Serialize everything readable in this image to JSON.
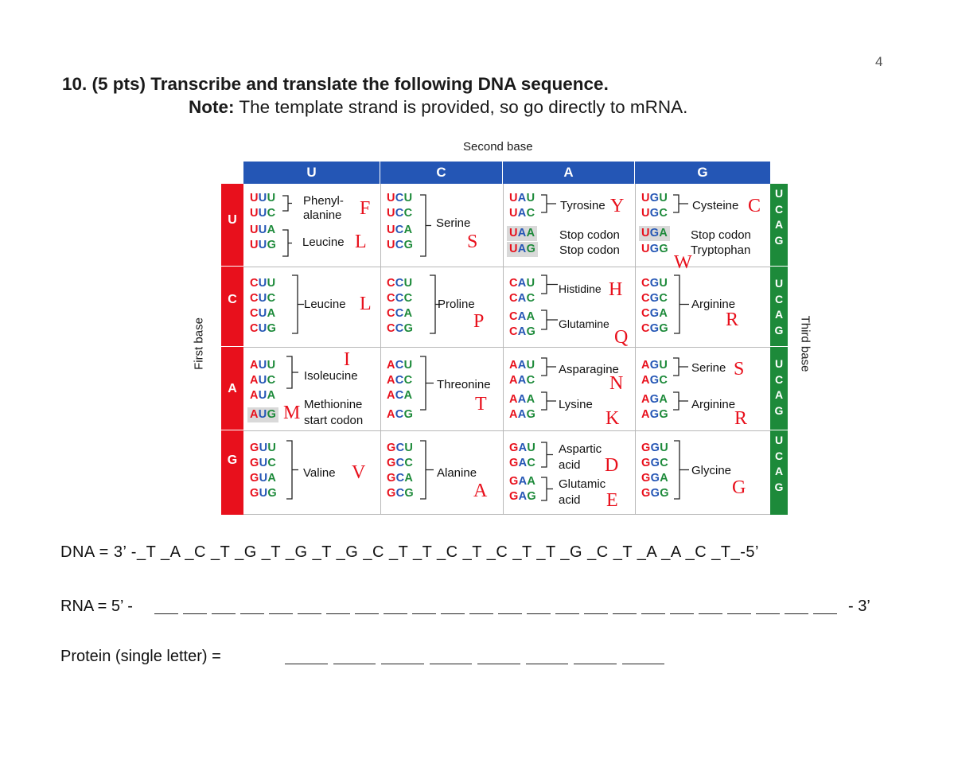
{
  "page_number": "4",
  "question": {
    "title": "10. (5 pts) Transcribe and translate the following DNA sequence.",
    "note_bold": "Note:",
    "note_text": " The template strand is provided, so go directly to mRNA."
  },
  "codon_table": {
    "second_base_label": "Second base",
    "first_base_label": "First base",
    "third_base_label": "Third base",
    "columns": [
      "U",
      "C",
      "A",
      "G"
    ],
    "rows": [
      "U",
      "C",
      "A",
      "G"
    ],
    "third_base_letters": [
      "U",
      "C",
      "A",
      "G"
    ],
    "colors": {
      "first_base": "#e8101c",
      "second_base": "#2456b5",
      "third_base": "#1d8a3a",
      "letter_annotation": "#e8101c"
    },
    "cells": {
      "UU": {
        "codons": [
          "UUU",
          "UUC",
          "UUA",
          "UUG"
        ],
        "aa1": "Phenyl-",
        "aa1b": "alanine",
        "aa1_letter": "F",
        "aa2": "Leucine",
        "aa2_letter": "L"
      },
      "UC": {
        "codons": [
          "UCU",
          "UCC",
          "UCA",
          "UCG"
        ],
        "aa": "Serine",
        "letter": "S"
      },
      "UA": {
        "codons": [
          "UAU",
          "UAC",
          "UAA",
          "UAG"
        ],
        "aa1": "Tyrosine",
        "aa1_letter": "Y",
        "stop1": "Stop codon",
        "stop2": "Stop codon"
      },
      "UG": {
        "codons": [
          "UGU",
          "UGC",
          "UGA",
          "UGG"
        ],
        "aa1": "Cysteine",
        "aa1_letter": "C",
        "stop1": "Stop codon",
        "aa2": "Tryptophan",
        "aa2_letter": "W"
      },
      "CU": {
        "codons": [
          "CUU",
          "CUC",
          "CUA",
          "CUG"
        ],
        "aa": "Leucine",
        "letter": "L"
      },
      "CC": {
        "codons": [
          "CCU",
          "CCC",
          "CCA",
          "CCG"
        ],
        "aa": "Proline",
        "letter": "P"
      },
      "CA": {
        "codons": [
          "CAU",
          "CAC",
          "CAA",
          "CAG"
        ],
        "aa1": "Histidine",
        "aa1_letter": "H",
        "aa2": "Glutamine",
        "aa2_letter": "Q"
      },
      "CG": {
        "codons": [
          "CGU",
          "CGC",
          "CGA",
          "CGG"
        ],
        "aa": "Arginine",
        "letter": "R"
      },
      "AU": {
        "codons": [
          "AUU",
          "AUC",
          "AUA",
          "AUG"
        ],
        "aa1": "Isoleucine",
        "aa1_letter": "I",
        "aa2": "Methionine",
        "aa2b": "start codon",
        "aa2_letter": "M"
      },
      "AC": {
        "codons": [
          "ACU",
          "ACC",
          "ACA",
          "ACG"
        ],
        "aa": "Threonine",
        "letter": "T"
      },
      "AA": {
        "codons": [
          "AAU",
          "AAC",
          "AAA",
          "AAG"
        ],
        "aa1": "Asparagine",
        "aa1_letter": "N",
        "aa2": "Lysine",
        "aa2_letter": "K"
      },
      "AG": {
        "codons": [
          "AGU",
          "AGC",
          "AGA",
          "AGG"
        ],
        "aa1": "Serine",
        "aa1_letter": "S",
        "aa2": "Arginine",
        "aa2_letter": "R"
      },
      "GU": {
        "codons": [
          "GUU",
          "GUC",
          "GUA",
          "GUG"
        ],
        "aa": "Valine",
        "letter": "V"
      },
      "GC": {
        "codons": [
          "GCU",
          "GCC",
          "GCA",
          "GCG"
        ],
        "aa": "Alanine",
        "letter": "A"
      },
      "GA": {
        "codons": [
          "GAU",
          "GAC",
          "GAA",
          "GAG"
        ],
        "aa1": "Aspartic",
        "aa1b": "acid",
        "aa1_letter": "D",
        "aa2": "Glutamic",
        "aa2b": "acid",
        "aa2_letter": "E"
      },
      "GG": {
        "codons": [
          "GGU",
          "GGC",
          "GGA",
          "GGG"
        ],
        "aa": "Glycine",
        "letter": "G"
      }
    }
  },
  "dna_line": "DNA = 3’ -_T _A _C _T _G _T _G _T _G _C _T _T _C _T _C _T _T _G _C _T _A _A _C _T_-5’",
  "rna_label": "RNA = 5’ -",
  "rna_end": "- 3’",
  "rna_blank_count": 24,
  "protein_label": "Protein (single letter) =",
  "protein_blank_count": 8
}
